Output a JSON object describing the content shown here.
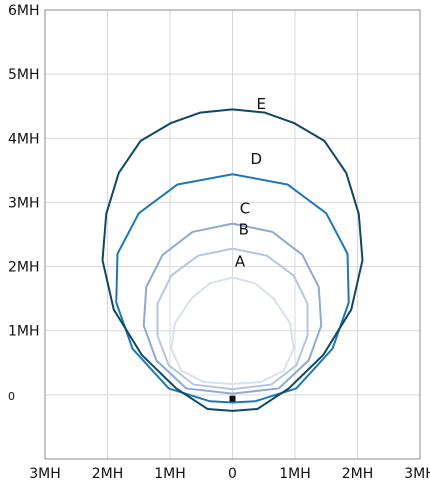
{
  "chart_data": {
    "type": "line",
    "title": "",
    "xlabel": "",
    "ylabel": "",
    "xlim": [
      -3,
      3
    ],
    "ylim": [
      -1,
      6
    ],
    "x_ticks": [
      {
        "value": -3,
        "label": "3MH"
      },
      {
        "value": -2,
        "label": "2MH"
      },
      {
        "value": -1,
        "label": "1MH"
      },
      {
        "value": 0,
        "label": "0"
      },
      {
        "value": 1,
        "label": "1MH"
      },
      {
        "value": 2,
        "label": "2MH"
      },
      {
        "value": 3,
        "label": "3MH"
      }
    ],
    "y_ticks": [
      {
        "value": 0,
        "label": "0"
      },
      {
        "value": 1,
        "label": "1MH"
      },
      {
        "value": 2,
        "label": "2MH"
      },
      {
        "value": 3,
        "label": "3MH"
      },
      {
        "value": 4,
        "label": "4MH"
      },
      {
        "value": 5,
        "label": "5MH"
      },
      {
        "value": 6,
        "label": "6MH"
      }
    ],
    "grid": true,
    "marker": {
      "x": 0,
      "y": -0.06,
      "color": "#111111"
    },
    "series": [
      {
        "name": "A",
        "color": "#d8e1ee",
        "label_x": 0.12,
        "label_y": 2.0,
        "points": [
          [
            0,
            1.83
          ],
          [
            0.36,
            1.74
          ],
          [
            0.66,
            1.5
          ],
          [
            0.92,
            1.12
          ],
          [
            0.98,
            0.72
          ],
          [
            0.82,
            0.38
          ],
          [
            0.46,
            0.2
          ],
          [
            0,
            0.17
          ],
          [
            -0.46,
            0.2
          ],
          [
            -0.82,
            0.38
          ],
          [
            -0.98,
            0.72
          ],
          [
            -0.92,
            1.12
          ],
          [
            -0.66,
            1.5
          ],
          [
            -0.36,
            1.74
          ],
          [
            0,
            1.83
          ]
        ]
      },
      {
        "name": "B",
        "color": "#b7c6df",
        "label_x": 0.18,
        "label_y": 2.5,
        "points": [
          [
            0,
            2.28
          ],
          [
            0.55,
            2.17
          ],
          [
            0.98,
            1.86
          ],
          [
            1.2,
            1.42
          ],
          [
            1.2,
            0.92
          ],
          [
            1.02,
            0.46
          ],
          [
            0.62,
            0.16
          ],
          [
            0,
            0.09
          ],
          [
            -0.62,
            0.16
          ],
          [
            -1.02,
            0.46
          ],
          [
            -1.2,
            0.92
          ],
          [
            -1.2,
            1.42
          ],
          [
            -0.98,
            1.86
          ],
          [
            -0.55,
            2.17
          ],
          [
            0,
            2.28
          ]
        ]
      },
      {
        "name": "C",
        "color": "#8fa9d2",
        "label_x": 0.2,
        "label_y": 2.83,
        "points": [
          [
            0,
            2.67
          ],
          [
            0.64,
            2.54
          ],
          [
            1.12,
            2.18
          ],
          [
            1.38,
            1.68
          ],
          [
            1.42,
            1.08
          ],
          [
            1.22,
            0.54
          ],
          [
            0.74,
            0.1
          ],
          [
            0,
            0.02
          ],
          [
            -0.74,
            0.1
          ],
          [
            -1.22,
            0.54
          ],
          [
            -1.42,
            1.08
          ],
          [
            -1.38,
            1.68
          ],
          [
            -1.12,
            2.18
          ],
          [
            -0.64,
            2.54
          ],
          [
            0,
            2.67
          ]
        ]
      },
      {
        "name": "D",
        "color": "#1f78b4",
        "label_x": 0.38,
        "label_y": 3.6,
        "points": [
          [
            0,
            3.44
          ],
          [
            0.88,
            3.28
          ],
          [
            1.5,
            2.83
          ],
          [
            1.84,
            2.2
          ],
          [
            1.86,
            1.44
          ],
          [
            1.6,
            0.72
          ],
          [
            1.02,
            0.1
          ],
          [
            0.36,
            -0.1
          ],
          [
            0,
            -0.12
          ],
          [
            -0.36,
            -0.1
          ],
          [
            -1.02,
            0.1
          ],
          [
            -1.6,
            0.72
          ],
          [
            -1.86,
            1.44
          ],
          [
            -1.84,
            2.2
          ],
          [
            -1.5,
            2.83
          ],
          [
            -0.88,
            3.28
          ],
          [
            0,
            3.44
          ]
        ]
      },
      {
        "name": "E",
        "color": "#0f4764",
        "label_x": 0.46,
        "label_y": 4.46,
        "points": [
          [
            0,
            4.45
          ],
          [
            0.52,
            4.4
          ],
          [
            0.98,
            4.24
          ],
          [
            1.47,
            3.96
          ],
          [
            1.82,
            3.46
          ],
          [
            2.02,
            2.82
          ],
          [
            2.08,
            2.1
          ],
          [
            1.9,
            1.33
          ],
          [
            1.45,
            0.62
          ],
          [
            0.9,
            0.1
          ],
          [
            0.4,
            -0.22
          ],
          [
            0,
            -0.25
          ],
          [
            -0.4,
            -0.22
          ],
          [
            -0.9,
            0.1
          ],
          [
            -1.45,
            0.62
          ],
          [
            -1.9,
            1.33
          ],
          [
            -2.08,
            2.1
          ],
          [
            -2.02,
            2.82
          ],
          [
            -1.82,
            3.46
          ],
          [
            -1.47,
            3.96
          ],
          [
            -0.98,
            4.24
          ],
          [
            -0.52,
            4.4
          ],
          [
            0,
            4.45
          ]
        ]
      }
    ]
  }
}
